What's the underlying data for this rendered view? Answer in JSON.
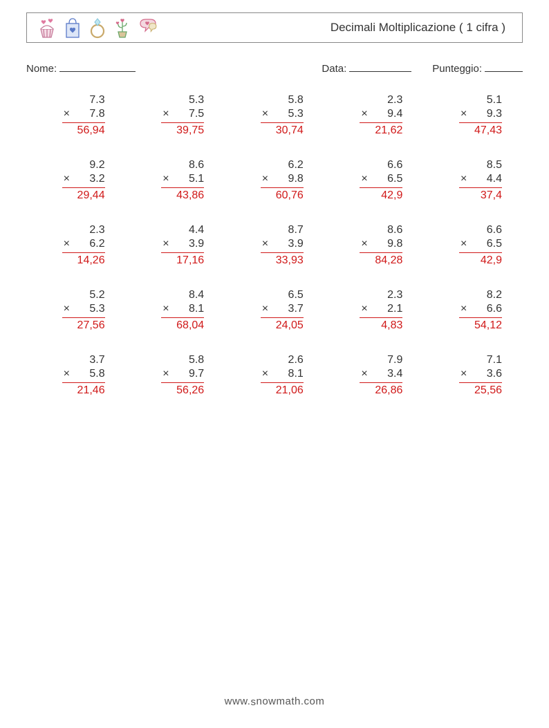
{
  "title": "Decimali Moltiplicazione ( 1 cifra )",
  "labels": {
    "nome": "Nome:",
    "data": "Data:",
    "punteggio": "Punteggio:"
  },
  "footer": {
    "prefix": "www.",
    "s": "s",
    "rest": "nowmath.com"
  },
  "operator": "×",
  "icons": [
    {
      "name": "cupcake-hearts",
      "stroke": "#c67a9a",
      "accent": "#e07aa0"
    },
    {
      "name": "gift-bag-heart",
      "stroke": "#5a7ac8",
      "accent": "#5a7ac8"
    },
    {
      "name": "ring-diamond",
      "stroke": "#c9a96a",
      "accent": "#7ac0d8"
    },
    {
      "name": "flower-pot-hearts",
      "stroke": "#6aa86a",
      "accent": "#d46a8a"
    },
    {
      "name": "speech-heart",
      "stroke": "#d46a8a",
      "accent": "#c9b070"
    }
  ],
  "answer_color": "#d01818",
  "text_color": "#333333",
  "problems": [
    [
      {
        "a": "7.3",
        "b": "7.8",
        "ans": "56,94"
      },
      {
        "a": "5.3",
        "b": "7.5",
        "ans": "39,75"
      },
      {
        "a": "5.8",
        "b": "5.3",
        "ans": "30,74"
      },
      {
        "a": "2.3",
        "b": "9.4",
        "ans": "21,62"
      },
      {
        "a": "5.1",
        "b": "9.3",
        "ans": "47,43"
      }
    ],
    [
      {
        "a": "9.2",
        "b": "3.2",
        "ans": "29,44"
      },
      {
        "a": "8.6",
        "b": "5.1",
        "ans": "43,86"
      },
      {
        "a": "6.2",
        "b": "9.8",
        "ans": "60,76"
      },
      {
        "a": "6.6",
        "b": "6.5",
        "ans": "42,9"
      },
      {
        "a": "8.5",
        "b": "4.4",
        "ans": "37,4"
      }
    ],
    [
      {
        "a": "2.3",
        "b": "6.2",
        "ans": "14,26"
      },
      {
        "a": "4.4",
        "b": "3.9",
        "ans": "17,16"
      },
      {
        "a": "8.7",
        "b": "3.9",
        "ans": "33,93"
      },
      {
        "a": "8.6",
        "b": "9.8",
        "ans": "84,28"
      },
      {
        "a": "6.6",
        "b": "6.5",
        "ans": "42,9"
      }
    ],
    [
      {
        "a": "5.2",
        "b": "5.3",
        "ans": "27,56"
      },
      {
        "a": "8.4",
        "b": "8.1",
        "ans": "68,04"
      },
      {
        "a": "6.5",
        "b": "3.7",
        "ans": "24,05"
      },
      {
        "a": "2.3",
        "b": "2.1",
        "ans": "4,83"
      },
      {
        "a": "8.2",
        "b": "6.6",
        "ans": "54,12"
      }
    ],
    [
      {
        "a": "3.7",
        "b": "5.8",
        "ans": "21,46"
      },
      {
        "a": "5.8",
        "b": "9.7",
        "ans": "56,26"
      },
      {
        "a": "2.6",
        "b": "8.1",
        "ans": "21,06"
      },
      {
        "a": "7.9",
        "b": "3.4",
        "ans": "26,86"
      },
      {
        "a": "7.1",
        "b": "3.6",
        "ans": "25,56"
      }
    ]
  ]
}
